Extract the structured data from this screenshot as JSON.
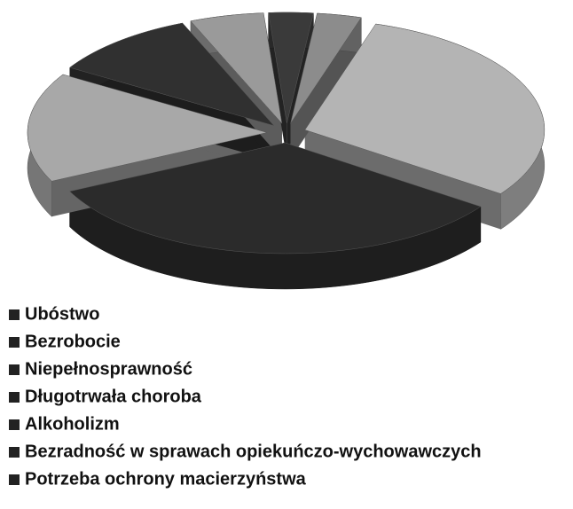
{
  "chart_data": {
    "type": "pie",
    "categories": [
      "Ubóstwo",
      "Bezrobocie",
      "Niepełnosprawność",
      "Długotrwała choroba",
      "Alkoholizm",
      "Bezradność w sprawach opiekuńczo-wychowawczych",
      "Potrzeba ochrony macierzyństwa"
    ],
    "values": [
      30,
      33,
      16,
      10,
      5,
      3,
      3
    ],
    "colors": [
      "#b4b4b4",
      "#2b2b2b",
      "#a8a8a8",
      "#303030",
      "#9a9a9a",
      "#3a3a3a",
      "#8c8c8c"
    ],
    "legend": "bottom"
  }
}
